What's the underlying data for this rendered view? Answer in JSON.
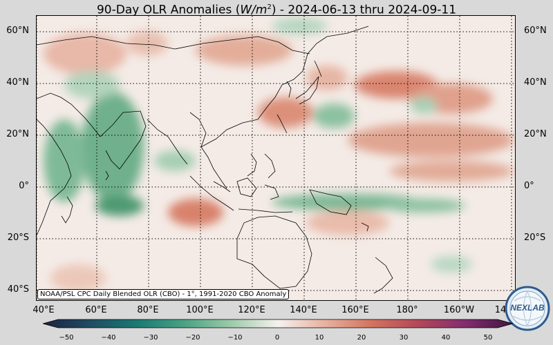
{
  "title": {
    "prefix": "90-Day OLR Anomalies (",
    "units_italic": "W/m",
    "units_power": "2",
    "suffix": ") - 2024-06-13 thru 2024-09-11"
  },
  "map": {
    "lat_labels": [
      "60°N",
      "40°N",
      "20°N",
      "0°",
      "20°S",
      "40°S"
    ],
    "lon_labels": [
      "40°E",
      "60°E",
      "80°E",
      "100°E",
      "120°E",
      "140°E",
      "160°E",
      "180°",
      "160°W",
      "14"
    ],
    "extent": {
      "lon_min": 40,
      "lon_max": 225,
      "lat_min": -42,
      "lat_max": 65
    },
    "gridlines": "dotted",
    "colors": {
      "positive": "#d06a55",
      "negative": "#2e8a5a",
      "coast": "#000000"
    }
  },
  "credit": "NOAA/PSL CPC Daily Blended OLR (CBO) - 1°, 1991-2020 CBO Anomaly",
  "logo": {
    "icon": "nexlab-logo-icon",
    "text": "NEXLAB"
  },
  "colorbar": {
    "ticks": [
      "−50",
      "−40",
      "−30",
      "−20",
      "−10",
      "0",
      "10",
      "20",
      "30",
      "40",
      "50"
    ],
    "colors": [
      "#1c2340",
      "#1f4b63",
      "#1a7a72",
      "#4aa184",
      "#9ccaa9",
      "#f6f1ee",
      "#e7b1a0",
      "#d2735f",
      "#b24759",
      "#822c6f",
      "#3e1640"
    ]
  }
}
